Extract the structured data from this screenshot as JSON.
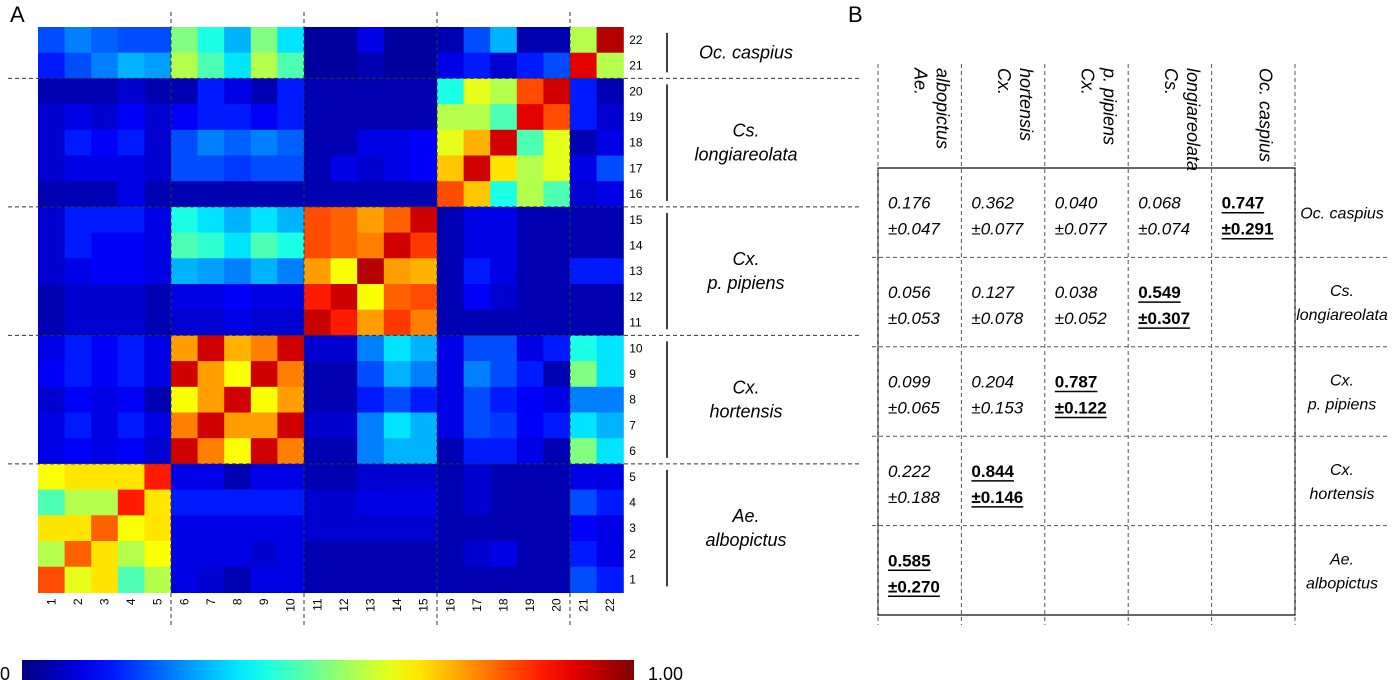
{
  "panel_a_label": "A",
  "panel_b_label": "B",
  "chart_data": [
    {
      "type": "heatmap",
      "title": "",
      "rows": [
        "22",
        "21",
        "20",
        "19",
        "18",
        "17",
        "16",
        "15",
        "14",
        "13",
        "12",
        "11",
        "10",
        "9",
        "8",
        "7",
        "6",
        "5",
        "4",
        "3",
        "2",
        "1"
      ],
      "columns": [
        "1",
        "2",
        "3",
        "4",
        "5",
        "6",
        "7",
        "8",
        "9",
        "10",
        "11",
        "12",
        "13",
        "14",
        "15",
        "16",
        "17",
        "18",
        "19",
        "20",
        "21",
        "22"
      ],
      "values": [
        [
          0.2,
          0.25,
          0.22,
          0.2,
          0.2,
          0.5,
          0.4,
          0.3,
          0.5,
          0.35,
          0.03,
          0.03,
          0.1,
          0.03,
          0.03,
          0.05,
          0.2,
          0.3,
          0.05,
          0.05,
          0.55,
          0.95
        ],
        [
          0.15,
          0.2,
          0.25,
          0.3,
          0.28,
          0.55,
          0.45,
          0.35,
          0.55,
          0.45,
          0.03,
          0.03,
          0.05,
          0.03,
          0.03,
          0.1,
          0.15,
          0.08,
          0.15,
          0.2,
          0.9,
          0.55
        ],
        [
          0.05,
          0.05,
          0.05,
          0.08,
          0.05,
          0.05,
          0.15,
          0.1,
          0.05,
          0.15,
          0.05,
          0.05,
          0.05,
          0.05,
          0.05,
          0.4,
          0.6,
          0.55,
          0.8,
          0.92,
          0.15,
          0.05
        ],
        [
          0.08,
          0.1,
          0.08,
          0.12,
          0.08,
          0.12,
          0.15,
          0.15,
          0.12,
          0.15,
          0.05,
          0.05,
          0.05,
          0.05,
          0.05,
          0.55,
          0.55,
          0.45,
          0.9,
          0.8,
          0.15,
          0.08
        ],
        [
          0.08,
          0.15,
          0.12,
          0.15,
          0.08,
          0.2,
          0.25,
          0.22,
          0.25,
          0.22,
          0.05,
          0.05,
          0.1,
          0.1,
          0.12,
          0.6,
          0.7,
          0.92,
          0.45,
          0.6,
          0.05,
          0.1
        ],
        [
          0.08,
          0.1,
          0.1,
          0.1,
          0.08,
          0.2,
          0.2,
          0.18,
          0.2,
          0.2,
          0.05,
          0.1,
          0.08,
          0.1,
          0.12,
          0.68,
          0.92,
          0.65,
          0.55,
          0.6,
          0.1,
          0.2
        ],
        [
          0.05,
          0.05,
          0.05,
          0.1,
          0.05,
          0.05,
          0.05,
          0.05,
          0.05,
          0.05,
          0.05,
          0.05,
          0.05,
          0.05,
          0.05,
          0.8,
          0.68,
          0.4,
          0.55,
          0.45,
          0.08,
          0.1
        ],
        [
          0.08,
          0.15,
          0.15,
          0.15,
          0.1,
          0.4,
          0.35,
          0.3,
          0.35,
          0.3,
          0.8,
          0.78,
          0.72,
          0.78,
          0.92,
          0.05,
          0.1,
          0.1,
          0.05,
          0.05,
          0.05,
          0.05
        ],
        [
          0.08,
          0.15,
          0.12,
          0.12,
          0.1,
          0.45,
          0.42,
          0.35,
          0.45,
          0.4,
          0.8,
          0.78,
          0.75,
          0.92,
          0.82,
          0.05,
          0.1,
          0.1,
          0.05,
          0.05,
          0.05,
          0.05
        ],
        [
          0.08,
          0.1,
          0.12,
          0.12,
          0.1,
          0.3,
          0.28,
          0.25,
          0.3,
          0.25,
          0.72,
          0.62,
          0.95,
          0.72,
          0.7,
          0.05,
          0.15,
          0.1,
          0.05,
          0.05,
          0.15,
          0.15
        ],
        [
          0.05,
          0.08,
          0.08,
          0.08,
          0.05,
          0.1,
          0.1,
          0.12,
          0.1,
          0.1,
          0.85,
          0.92,
          0.62,
          0.78,
          0.8,
          0.05,
          0.12,
          0.08,
          0.05,
          0.05,
          0.05,
          0.05
        ],
        [
          0.05,
          0.08,
          0.08,
          0.08,
          0.05,
          0.08,
          0.08,
          0.1,
          0.08,
          0.08,
          0.93,
          0.85,
          0.72,
          0.82,
          0.75,
          0.05,
          0.05,
          0.05,
          0.05,
          0.05,
          0.05,
          0.05
        ],
        [
          0.1,
          0.15,
          0.12,
          0.15,
          0.1,
          0.72,
          0.92,
          0.7,
          0.75,
          0.92,
          0.08,
          0.08,
          0.25,
          0.35,
          0.3,
          0.1,
          0.2,
          0.2,
          0.1,
          0.15,
          0.4,
          0.35
        ],
        [
          0.12,
          0.15,
          0.12,
          0.15,
          0.1,
          0.92,
          0.72,
          0.62,
          0.92,
          0.75,
          0.05,
          0.05,
          0.2,
          0.3,
          0.25,
          0.1,
          0.25,
          0.2,
          0.15,
          0.05,
          0.5,
          0.35
        ],
        [
          0.08,
          0.12,
          0.1,
          0.12,
          0.05,
          0.62,
          0.72,
          0.92,
          0.62,
          0.72,
          0.05,
          0.05,
          0.15,
          0.2,
          0.15,
          0.1,
          0.2,
          0.15,
          0.12,
          0.1,
          0.25,
          0.25
        ],
        [
          0.1,
          0.15,
          0.1,
          0.15,
          0.1,
          0.75,
          0.92,
          0.72,
          0.72,
          0.92,
          0.08,
          0.08,
          0.25,
          0.35,
          0.3,
          0.1,
          0.2,
          0.18,
          0.12,
          0.15,
          0.35,
          0.3
        ],
        [
          0.1,
          0.12,
          0.1,
          0.12,
          0.08,
          0.92,
          0.75,
          0.62,
          0.92,
          0.75,
          0.05,
          0.05,
          0.25,
          0.3,
          0.3,
          0.05,
          0.15,
          0.15,
          0.1,
          0.05,
          0.5,
          0.35
        ],
        [
          0.62,
          0.65,
          0.65,
          0.65,
          0.85,
          0.1,
          0.1,
          0.05,
          0.1,
          0.1,
          0.05,
          0.05,
          0.08,
          0.08,
          0.08,
          0.05,
          0.08,
          0.05,
          0.05,
          0.05,
          0.1,
          0.1
        ],
        [
          0.45,
          0.55,
          0.55,
          0.85,
          0.65,
          0.15,
          0.15,
          0.15,
          0.15,
          0.15,
          0.08,
          0.08,
          0.1,
          0.1,
          0.1,
          0.05,
          0.08,
          0.05,
          0.05,
          0.05,
          0.2,
          0.15
        ],
        [
          0.65,
          0.65,
          0.78,
          0.62,
          0.65,
          0.1,
          0.1,
          0.1,
          0.1,
          0.1,
          0.08,
          0.08,
          0.08,
          0.08,
          0.08,
          0.05,
          0.05,
          0.05,
          0.05,
          0.05,
          0.12,
          0.1
        ],
        [
          0.55,
          0.78,
          0.65,
          0.55,
          0.62,
          0.1,
          0.1,
          0.1,
          0.08,
          0.1,
          0.05,
          0.05,
          0.05,
          0.05,
          0.05,
          0.05,
          0.08,
          0.1,
          0.05,
          0.05,
          0.15,
          0.1
        ],
        [
          0.8,
          0.6,
          0.65,
          0.45,
          0.55,
          0.1,
          0.08,
          0.05,
          0.1,
          0.1,
          0.05,
          0.05,
          0.05,
          0.05,
          0.05,
          0.05,
          0.05,
          0.05,
          0.05,
          0.05,
          0.2,
          0.15
        ]
      ],
      "groups": [
        {
          "name_lines": [
            "Oc. caspius"
          ],
          "row_count": 2
        },
        {
          "name_lines": [
            "Cs.",
            "longiareolata"
          ],
          "row_count": 5
        },
        {
          "name_lines": [
            "Cx.",
            "p. pipiens"
          ],
          "row_count": 5
        },
        {
          "name_lines": [
            "Cx.",
            "hortensis"
          ],
          "row_count": 5
        },
        {
          "name_lines": [
            "Ae.",
            "albopictus"
          ],
          "row_count": 5
        }
      ],
      "column_group_sizes": [
        5,
        5,
        5,
        5,
        2
      ],
      "colorbar": {
        "min_label": "0",
        "max_label": "1.00",
        "range": [
          0,
          1
        ],
        "colormap": "jet"
      }
    },
    {
      "type": "table",
      "columns": [
        [
          "Ae.",
          "albopictus"
        ],
        [
          "Cx.",
          "hortensis"
        ],
        [
          "Cx.",
          "p. pipiens"
        ],
        [
          "Cs.",
          "longiareolata"
        ],
        [
          "Oc. caspius"
        ]
      ],
      "rows": [
        {
          "label": [
            "Oc. caspius"
          ],
          "cells": [
            {
              "mean": "0.176",
              "sd": "±0.047"
            },
            {
              "mean": "0.362",
              "sd": "±0.077"
            },
            {
              "mean": "0.040",
              "sd": "±0.077"
            },
            {
              "mean": "0.068",
              "sd": "±0.074"
            },
            {
              "mean": "0.747",
              "sd": "±0.291",
              "emphasis": true
            }
          ]
        },
        {
          "label": [
            "Cs.",
            "longiareolata"
          ],
          "cells": [
            {
              "mean": "0.056",
              "sd": "±0.053"
            },
            {
              "mean": "0.127",
              "sd": "±0.078"
            },
            {
              "mean": "0.038",
              "sd": "±0.052"
            },
            {
              "mean": "0.549",
              "sd": "±0.307",
              "emphasis": true
            },
            null
          ]
        },
        {
          "label": [
            "Cx.",
            "p. pipiens"
          ],
          "cells": [
            {
              "mean": "0.099",
              "sd": "±0.065"
            },
            {
              "mean": "0.204",
              "sd": "±0.153"
            },
            {
              "mean": "0.787",
              "sd": "±0.122",
              "emphasis": true
            },
            null,
            null
          ]
        },
        {
          "label": [
            "Cx.",
            "hortensis"
          ],
          "cells": [
            {
              "mean": "0.222",
              "sd": "±0.188"
            },
            {
              "mean": "0.844",
              "sd": "±0.146",
              "emphasis": true
            },
            null,
            null,
            null
          ]
        },
        {
          "label": [
            "Ae.",
            "albopictus"
          ],
          "cells": [
            {
              "mean": "0.585",
              "sd": "±0.270",
              "emphasis": true
            },
            null,
            null,
            null,
            null
          ]
        }
      ]
    }
  ]
}
